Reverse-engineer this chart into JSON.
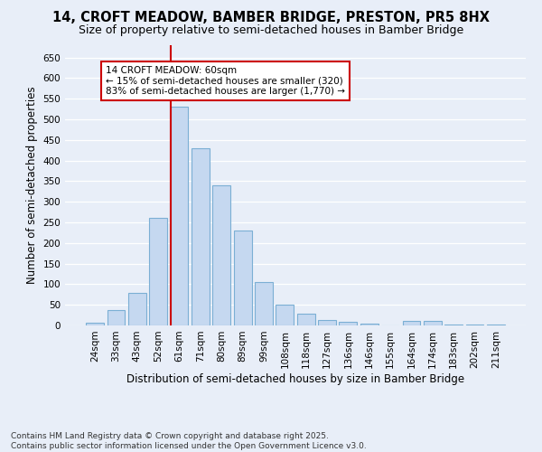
{
  "title_line1": "14, CROFT MEADOW, BAMBER BRIDGE, PRESTON, PR5 8HX",
  "title_line2": "Size of property relative to semi-detached houses in Bamber Bridge",
  "xlabel": "Distribution of semi-detached houses by size in Bamber Bridge",
  "ylabel": "Number of semi-detached properties",
  "footer": "Contains HM Land Registry data © Crown copyright and database right 2025.\nContains public sector information licensed under the Open Government Licence v3.0.",
  "categories": [
    "24sqm",
    "33sqm",
    "43sqm",
    "52sqm",
    "61sqm",
    "71sqm",
    "80sqm",
    "89sqm",
    "99sqm",
    "108sqm",
    "118sqm",
    "127sqm",
    "136sqm",
    "146sqm",
    "155sqm",
    "164sqm",
    "174sqm",
    "183sqm",
    "202sqm",
    "211sqm"
  ],
  "values": [
    7,
    37,
    80,
    260,
    530,
    430,
    340,
    230,
    105,
    50,
    28,
    14,
    9,
    5,
    0,
    10,
    10,
    2,
    2,
    2
  ],
  "bar_color": "#c5d8f0",
  "bar_edge_color": "#7bafd4",
  "marker_index": 4,
  "marker_color": "#cc0000",
  "annotation_title": "14 CROFT MEADOW: 60sqm",
  "annotation_line1": "← 15% of semi-detached houses are smaller (320)",
  "annotation_line2": "83% of semi-detached houses are larger (1,770) →",
  "annotation_box_facecolor": "#ffffff",
  "annotation_box_edgecolor": "#cc0000",
  "ylim": [
    0,
    680
  ],
  "yticks": [
    0,
    50,
    100,
    150,
    200,
    250,
    300,
    350,
    400,
    450,
    500,
    550,
    600,
    650
  ],
  "background_color": "#e8eef8",
  "plot_bg_color": "#e8eef8",
  "grid_color": "#ffffff",
  "title_fontsize": 10.5,
  "subtitle_fontsize": 9,
  "axis_label_fontsize": 8.5,
  "tick_fontsize": 7.5,
  "footer_fontsize": 6.5
}
